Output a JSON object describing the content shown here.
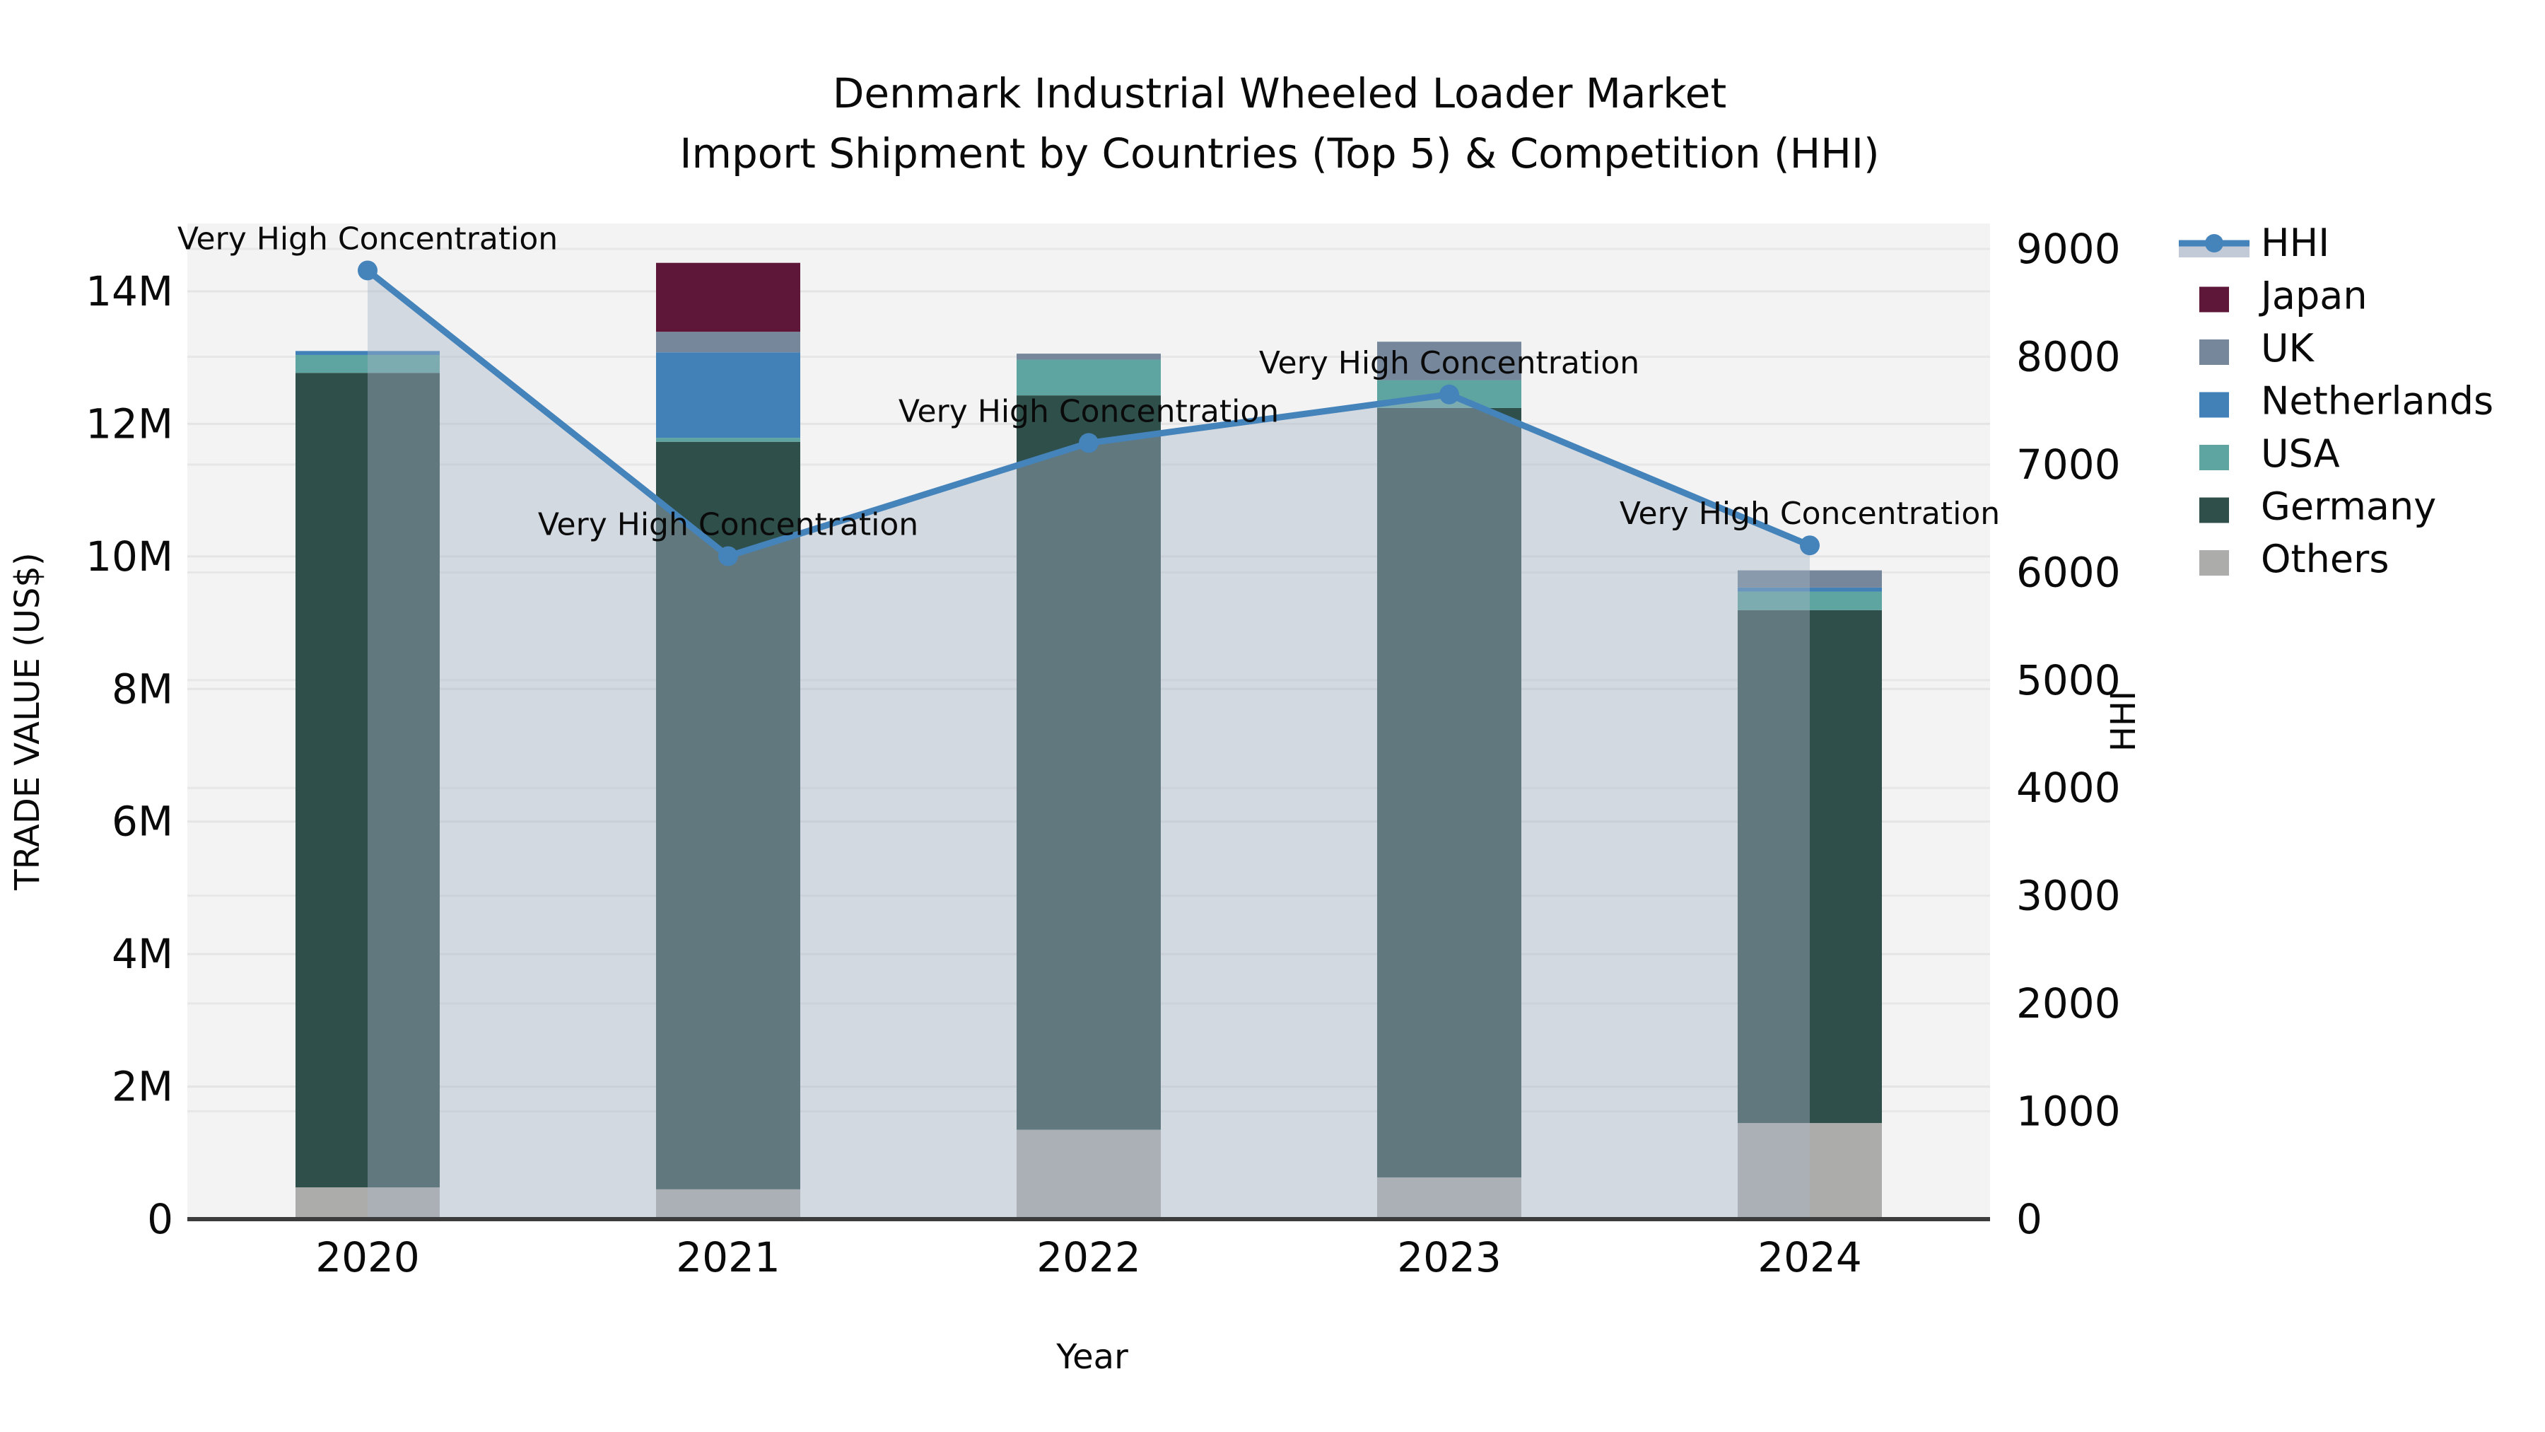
{
  "title": {
    "line1": "Denmark Industrial Wheeled Loader Market",
    "line2": "Import Shipment by Countries (Top 5) & Competition (HHI)"
  },
  "axes": {
    "left": {
      "title": "TRADE VALUE (US$)",
      "tick_labels": [
        "0",
        "2M",
        "4M",
        "6M",
        "8M",
        "10M",
        "12M",
        "14M"
      ]
    },
    "right": {
      "title": "HHI",
      "tick_labels": [
        "0",
        "1000",
        "2000",
        "3000",
        "4000",
        "5000",
        "6000",
        "7000",
        "8000",
        "9000"
      ]
    },
    "x": {
      "title": "Year",
      "tick_labels": [
        "2020",
        "2021",
        "2022",
        "2023",
        "2024"
      ]
    }
  },
  "legend": {
    "items": [
      {
        "label": "HHI",
        "type": "line",
        "color": "#4583bb"
      },
      {
        "label": "Japan",
        "type": "box",
        "color": "#5e1738"
      },
      {
        "label": "UK",
        "type": "box",
        "color": "#76879b"
      },
      {
        "label": "Netherlands",
        "type": "box",
        "color": "#4181b8"
      },
      {
        "label": "USA",
        "type": "box",
        "color": "#5ea5a1"
      },
      {
        "label": "Germany",
        "type": "box",
        "color": "#2f4f4a"
      },
      {
        "label": "Others",
        "type": "box",
        "color": "#acacaa"
      }
    ]
  },
  "chart_data": {
    "type": "bar",
    "subtype": "stacked-bars-with-line-overlay",
    "title": "Denmark Industrial Wheeled Loader Market — Import Shipment by Countries (Top 5) & Competition (HHI)",
    "categories": [
      "2020",
      "2021",
      "2022",
      "2023",
      "2024"
    ],
    "bar_value_unit": "million US$",
    "series": [
      {
        "name": "Others",
        "color": "#acacaa",
        "values": [
          0.48,
          0.45,
          1.35,
          0.63,
          1.45
        ]
      },
      {
        "name": "Germany",
        "color": "#2f4f4a",
        "values": [
          12.29,
          11.28,
          11.08,
          11.61,
          7.74
        ]
      },
      {
        "name": "USA",
        "color": "#5ea5a1",
        "values": [
          0.27,
          0.06,
          0.54,
          0.42,
          0.28
        ]
      },
      {
        "name": "Netherlands",
        "color": "#4181b8",
        "values": [
          0.06,
          1.29,
          0.0,
          0.0,
          0.06
        ]
      },
      {
        "name": "UK",
        "color": "#76879b",
        "values": [
          0.0,
          0.31,
          0.09,
          0.58,
          0.26
        ]
      },
      {
        "name": "Japan",
        "color": "#5e1738",
        "values": [
          0.0,
          1.04,
          0.0,
          0.0,
          0.0
        ]
      }
    ],
    "bar_totals": [
      13.1,
      14.43,
      13.06,
      13.24,
      9.79
    ],
    "line_series": {
      "name": "HHI",
      "color": "#4583bb",
      "values": [
        8800,
        6150,
        7200,
        7650,
        6250
      ],
      "markers": true,
      "area_fill": "rgba(167,180,198,0.42)"
    },
    "annotations": [
      {
        "category": "2020",
        "text": "Very High Concentration"
      },
      {
        "category": "2021",
        "text": "Very High Concentration"
      },
      {
        "category": "2022",
        "text": "Very High Concentration"
      },
      {
        "category": "2023",
        "text": "Very High Concentration"
      },
      {
        "category": "2024",
        "text": "Very High Concentration"
      }
    ],
    "xlabel": "Year",
    "ylabel_left": "TRADE VALUE (US$)",
    "ylabel_right": "HHI",
    "y_left": {
      "ticks": [
        0,
        2,
        4,
        6,
        8,
        10,
        12,
        14
      ],
      "unit": "M",
      "range": [
        0,
        15.0
      ]
    },
    "y_right": {
      "ticks": [
        0,
        1000,
        2000,
        3000,
        4000,
        5000,
        6000,
        7000,
        8000,
        9000
      ],
      "range": [
        0,
        9236
      ]
    },
    "grid": true,
    "legend_position": "right-outside"
  }
}
